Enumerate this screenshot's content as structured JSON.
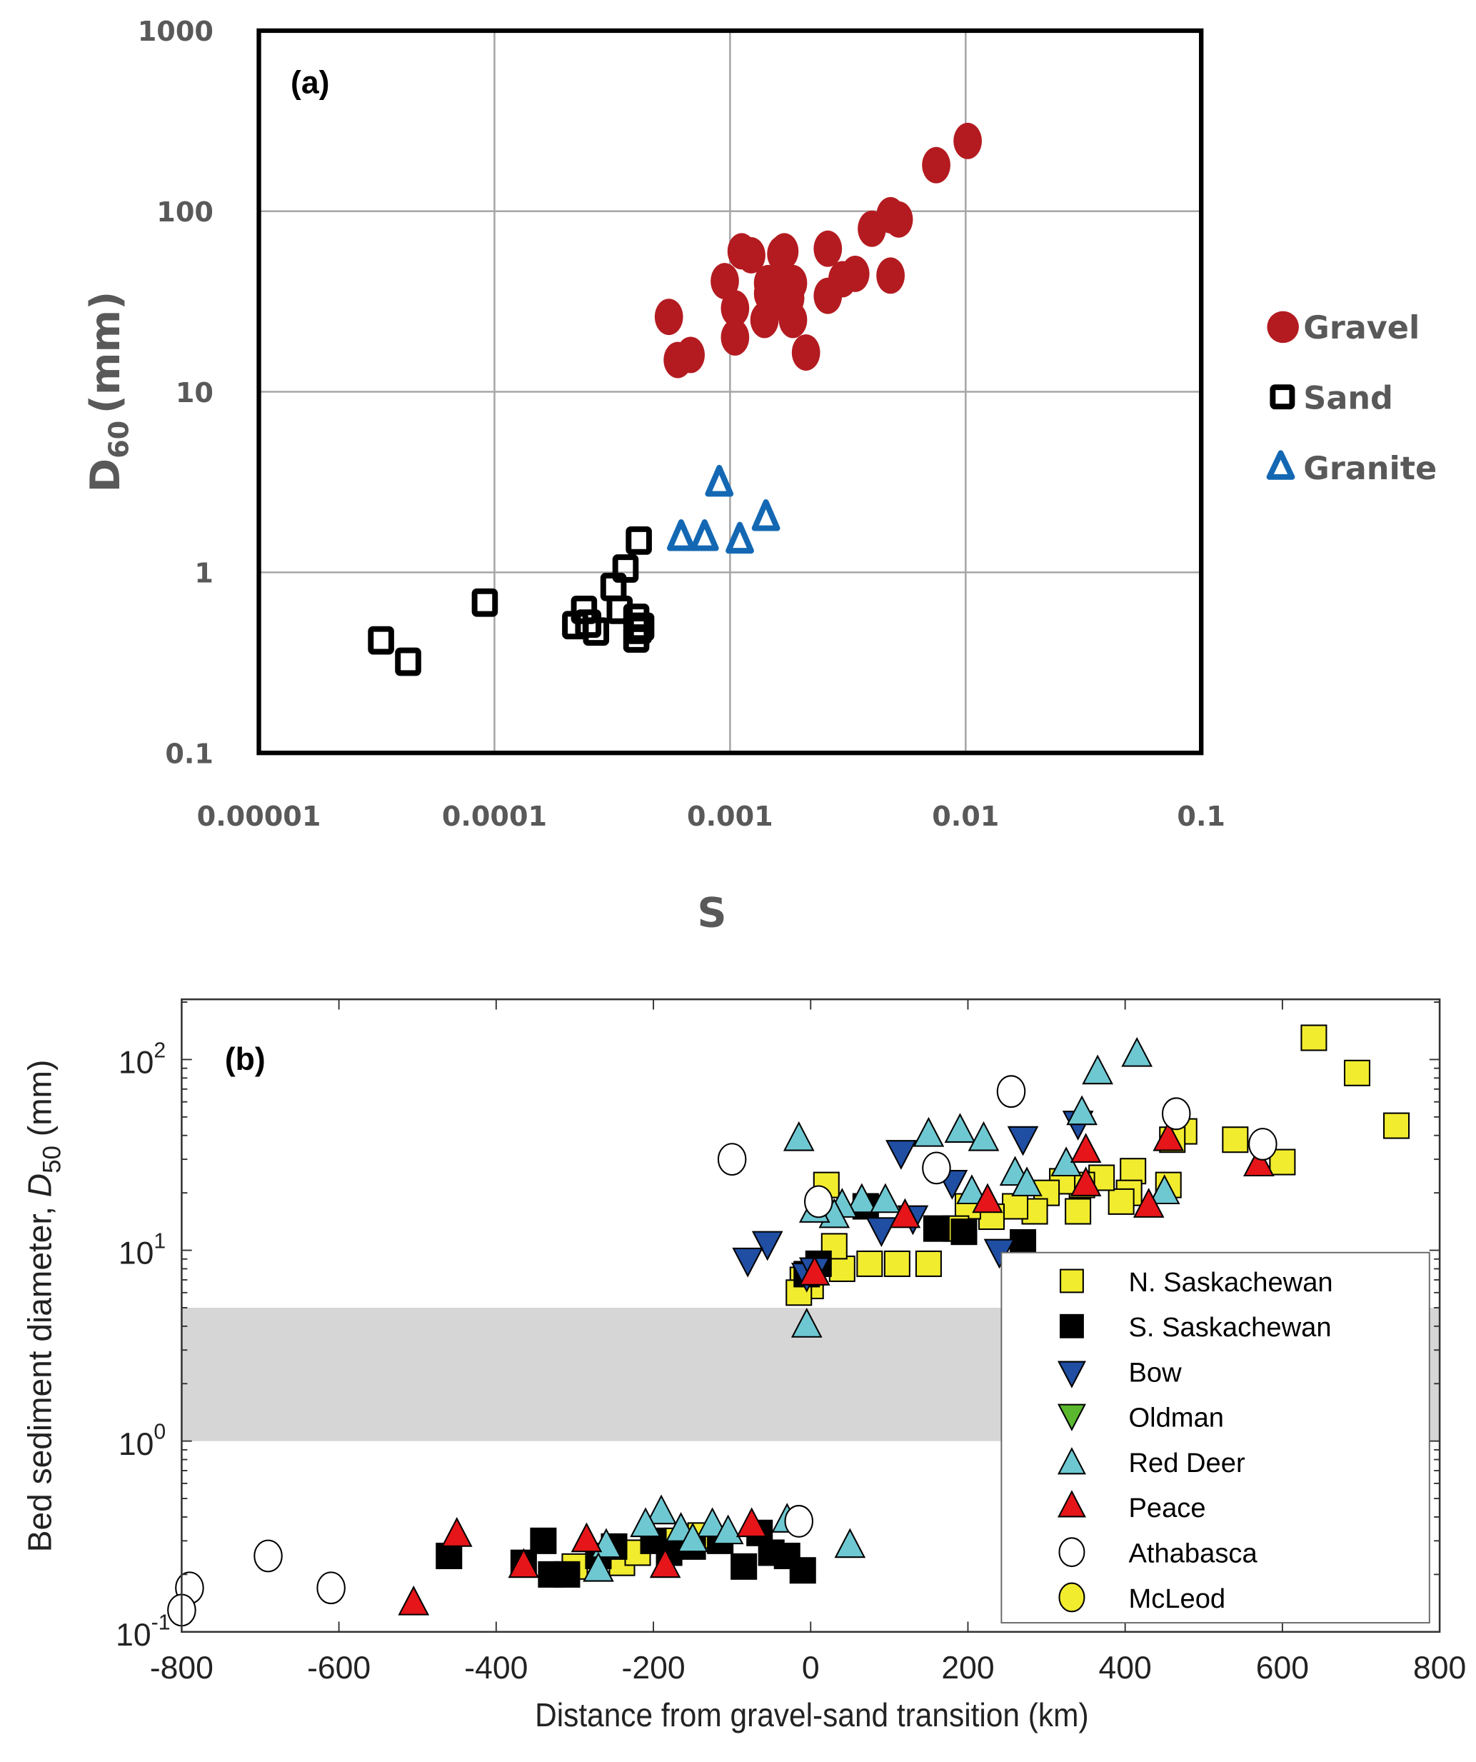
{
  "chart_data": [
    {
      "type": "scatter",
      "panel_label": "(a)",
      "xlabel": "S",
      "ylabel_main": "D",
      "ylabel_sub": "60",
      "ylabel_unit": "(mm)",
      "xscale": "log",
      "yscale": "log",
      "xlim": [
        1e-05,
        0.1
      ],
      "ylim": [
        0.1,
        1000
      ],
      "grid": true,
      "legend_position": "right-outside",
      "xticks": [
        "0.00001",
        "0.0001",
        "0.001",
        "0.01",
        "0.1"
      ],
      "xtick_values": [
        1e-05,
        0.0001,
        0.001,
        0.01,
        0.1
      ],
      "yticks": [
        "1000",
        "100",
        "10",
        "1",
        "0.1"
      ],
      "ytick_values": [
        1000,
        100,
        10,
        1,
        0.1
      ],
      "series": [
        {
          "name": "Gravel",
          "marker": "circle-filled",
          "color": "#b31b20",
          "points": [
            [
              0.0102,
              245
            ],
            [
              0.0075,
              180
            ],
            [
              0.0052,
              90
            ],
            [
              0.0048,
              95
            ],
            [
              0.004,
              80
            ],
            [
              0.0048,
              44
            ],
            [
              0.0034,
              45
            ],
            [
              0.003,
              42
            ],
            [
              0.0026,
              62
            ],
            [
              0.0026,
              34
            ],
            [
              0.0017,
              60
            ],
            [
              0.00112,
              60
            ],
            [
              0.00123,
              57
            ],
            [
              0.00165,
              58
            ],
            [
              0.00095,
              41
            ],
            [
              0.00145,
              40
            ],
            [
              0.0016,
              40
            ],
            [
              0.00185,
              40
            ],
            [
              0.00145,
              35
            ],
            [
              0.00165,
              35
            ],
            [
              0.0018,
              33
            ],
            [
              0.00105,
              29
            ],
            [
              0.00175,
              30
            ],
            [
              0.0014,
              25
            ],
            [
              0.00185,
              25
            ],
            [
              0.00055,
              26
            ],
            [
              0.0006,
              15
            ],
            [
              0.00068,
              16
            ],
            [
              0.00105,
              20
            ],
            [
              0.0021,
              16.5
            ]
          ]
        },
        {
          "name": "Sand",
          "marker": "square-open",
          "color": "#000000",
          "points": [
            [
              3.3e-05,
              0.42
            ],
            [
              4.3e-05,
              0.32
            ],
            [
              9.1e-05,
              0.68
            ],
            [
              0.00022,
              0.51
            ],
            [
              0.00025,
              0.52
            ],
            [
              0.00024,
              0.62
            ],
            [
              0.00027,
              0.47
            ],
            [
              0.00032,
              0.83
            ],
            [
              0.00036,
              1.05
            ],
            [
              0.00041,
              1.5
            ],
            [
              0.00034,
              0.62
            ],
            [
              0.0004,
              0.56
            ],
            [
              0.00041,
              0.48
            ],
            [
              0.00042,
              0.5
            ],
            [
              0.0004,
              0.43
            ]
          ]
        },
        {
          "name": "Granite",
          "marker": "triangle-open",
          "color": "#1468b3",
          "points": [
            [
              0.0009,
              3.1
            ],
            [
              0.00062,
              1.55
            ],
            [
              0.00078,
              1.55
            ],
            [
              0.0011,
              1.5
            ],
            [
              0.00142,
              2.0
            ]
          ]
        }
      ]
    },
    {
      "type": "scatter",
      "panel_label": "(b)",
      "xlabel": "Distance from gravel-sand transition (km)",
      "ylabel_main": "Bed sediment diameter, ",
      "ylabel_var": "D",
      "ylabel_sub": "50",
      "ylabel_unit": " (mm)",
      "xscale": "linear",
      "yscale": "log",
      "xlim": [
        -800,
        800
      ],
      "ylim": [
        0.1,
        200
      ],
      "grid": false,
      "shaded_band": {
        "ymin": 1,
        "ymax": 5,
        "color": "#d6d6d6"
      },
      "legend_position": "bottom-right",
      "xticks": [
        "-800",
        "-600",
        "-400",
        "-200",
        "0",
        "200",
        "400",
        "600",
        "800"
      ],
      "xtick_values": [
        -800,
        -600,
        -400,
        -200,
        0,
        200,
        400,
        600,
        800
      ],
      "yticks": [
        {
          "base": "10",
          "exp": "2",
          "value": 100
        },
        {
          "base": "10",
          "exp": "1",
          "value": 10
        },
        {
          "base": "10",
          "exp": "0",
          "value": 1
        },
        {
          "base": "10",
          "exp": "-1",
          "value": 0.1
        }
      ],
      "series": [
        {
          "name": "N. Saskachewan",
          "marker": "square",
          "color": "#f2ec2f",
          "points": [
            [
              640,
              130
            ],
            [
              695,
              85
            ],
            [
              745,
              45
            ],
            [
              600,
              29
            ],
            [
              540,
              38
            ],
            [
              475,
              42
            ],
            [
              455,
              22
            ],
            [
              460,
              38
            ],
            [
              410,
              26
            ],
            [
              405,
              20
            ],
            [
              395,
              18
            ],
            [
              370,
              24
            ],
            [
              345,
              22
            ],
            [
              340,
              16
            ],
            [
              320,
              23
            ],
            [
              300,
              20
            ],
            [
              285,
              16
            ],
            [
              260,
              17
            ],
            [
              230,
              15
            ],
            [
              200,
              17
            ],
            [
              185,
              13
            ],
            [
              150,
              8.5
            ],
            [
              110,
              8.5
            ],
            [
              75,
              8.5
            ],
            [
              40,
              8
            ],
            [
              30,
              10.5
            ],
            [
              20,
              22
            ],
            [
              -10,
              7
            ],
            [
              0,
              6.5
            ],
            [
              -15,
              6
            ],
            [
              -300,
              0.22
            ],
            [
              -240,
              0.23
            ],
            [
              -170,
              0.3
            ],
            [
              -140,
              0.32
            ],
            [
              -220,
              0.26
            ]
          ]
        },
        {
          "name": "S. Saskachewan",
          "marker": "square",
          "color": "#000000",
          "points": [
            [
              270,
              11
            ],
            [
              195,
              12.5
            ],
            [
              160,
              13
            ],
            [
              70,
              17
            ],
            [
              10,
              8.5
            ],
            [
              -5,
              7.5
            ],
            [
              -460,
              0.25
            ],
            [
              -365,
              0.23
            ],
            [
              -340,
              0.3
            ],
            [
              -330,
              0.2
            ],
            [
              -310,
              0.2
            ],
            [
              -270,
              0.25
            ],
            [
              -250,
              0.28
            ],
            [
              -200,
              0.3
            ],
            [
              -180,
              0.26
            ],
            [
              -150,
              0.28
            ],
            [
              -115,
              0.3
            ],
            [
              -85,
              0.22
            ],
            [
              -65,
              0.33
            ],
            [
              -50,
              0.26
            ],
            [
              -10,
              0.21
            ],
            [
              -30,
              0.25
            ]
          ]
        },
        {
          "name": "Bow",
          "marker": "triangle-down",
          "color": "#1f4ea3",
          "points": [
            [
              -55,
              11
            ],
            [
              -80,
              9
            ],
            [
              115,
              33
            ],
            [
              180,
              23
            ],
            [
              130,
              15
            ],
            [
              270,
              39
            ],
            [
              340,
              47
            ],
            [
              240,
              10
            ],
            [
              90,
              13
            ],
            [
              -5,
              7.5
            ],
            [
              5,
              8
            ]
          ]
        },
        {
          "name": "Oldman",
          "marker": "triangle-down",
          "color": "#5bb82e",
          "points": []
        },
        {
          "name": "Red Deer",
          "marker": "triangle-up",
          "color": "#6ec8d2",
          "points": [
            [
              415,
              105
            ],
            [
              365,
              85
            ],
            [
              345,
              52
            ],
            [
              190,
              42
            ],
            [
              220,
              38
            ],
            [
              150,
              40
            ],
            [
              -15,
              38
            ],
            [
              260,
              25
            ],
            [
              325,
              28
            ],
            [
              450,
              20
            ],
            [
              65,
              18
            ],
            [
              95,
              18
            ],
            [
              40,
              17
            ],
            [
              30,
              15
            ],
            [
              275,
              22
            ],
            [
              205,
              20
            ],
            [
              -5,
              4
            ],
            [
              5,
              16
            ],
            [
              -190,
              0.42
            ],
            [
              -210,
              0.36
            ],
            [
              -165,
              0.34
            ],
            [
              -125,
              0.36
            ],
            [
              -260,
              0.28
            ],
            [
              -270,
              0.21
            ],
            [
              -105,
              0.33
            ],
            [
              -150,
              0.3
            ],
            [
              50,
              0.28
            ],
            [
              -30,
              0.38
            ]
          ]
        },
        {
          "name": "Peace",
          "marker": "triangle-up",
          "color": "#e51519",
          "points": [
            [
              350,
              33
            ],
            [
              350,
              22
            ],
            [
              455,
              38
            ],
            [
              430,
              17
            ],
            [
              570,
              28
            ],
            [
              225,
              18
            ],
            [
              120,
              15
            ],
            [
              5,
              7.5
            ],
            [
              -450,
              0.32
            ],
            [
              -505,
              0.14
            ],
            [
              -365,
              0.22
            ],
            [
              -285,
              0.3
            ],
            [
              -185,
              0.22
            ],
            [
              -75,
              0.36
            ]
          ]
        },
        {
          "name": "Athabasca",
          "marker": "circle",
          "color": "#ffffff",
          "points": [
            [
              -100,
              30
            ],
            [
              10,
              18
            ],
            [
              160,
              27
            ],
            [
              255,
              68
            ],
            [
              465,
              52
            ],
            [
              575,
              36
            ],
            [
              -790,
              0.17
            ],
            [
              -800,
              0.13
            ],
            [
              -690,
              0.25
            ],
            [
              -610,
              0.17
            ],
            [
              -15,
              0.38
            ]
          ]
        },
        {
          "name": "McLeod",
          "marker": "circle",
          "color": "#f2ec2f",
          "points": []
        }
      ]
    }
  ]
}
